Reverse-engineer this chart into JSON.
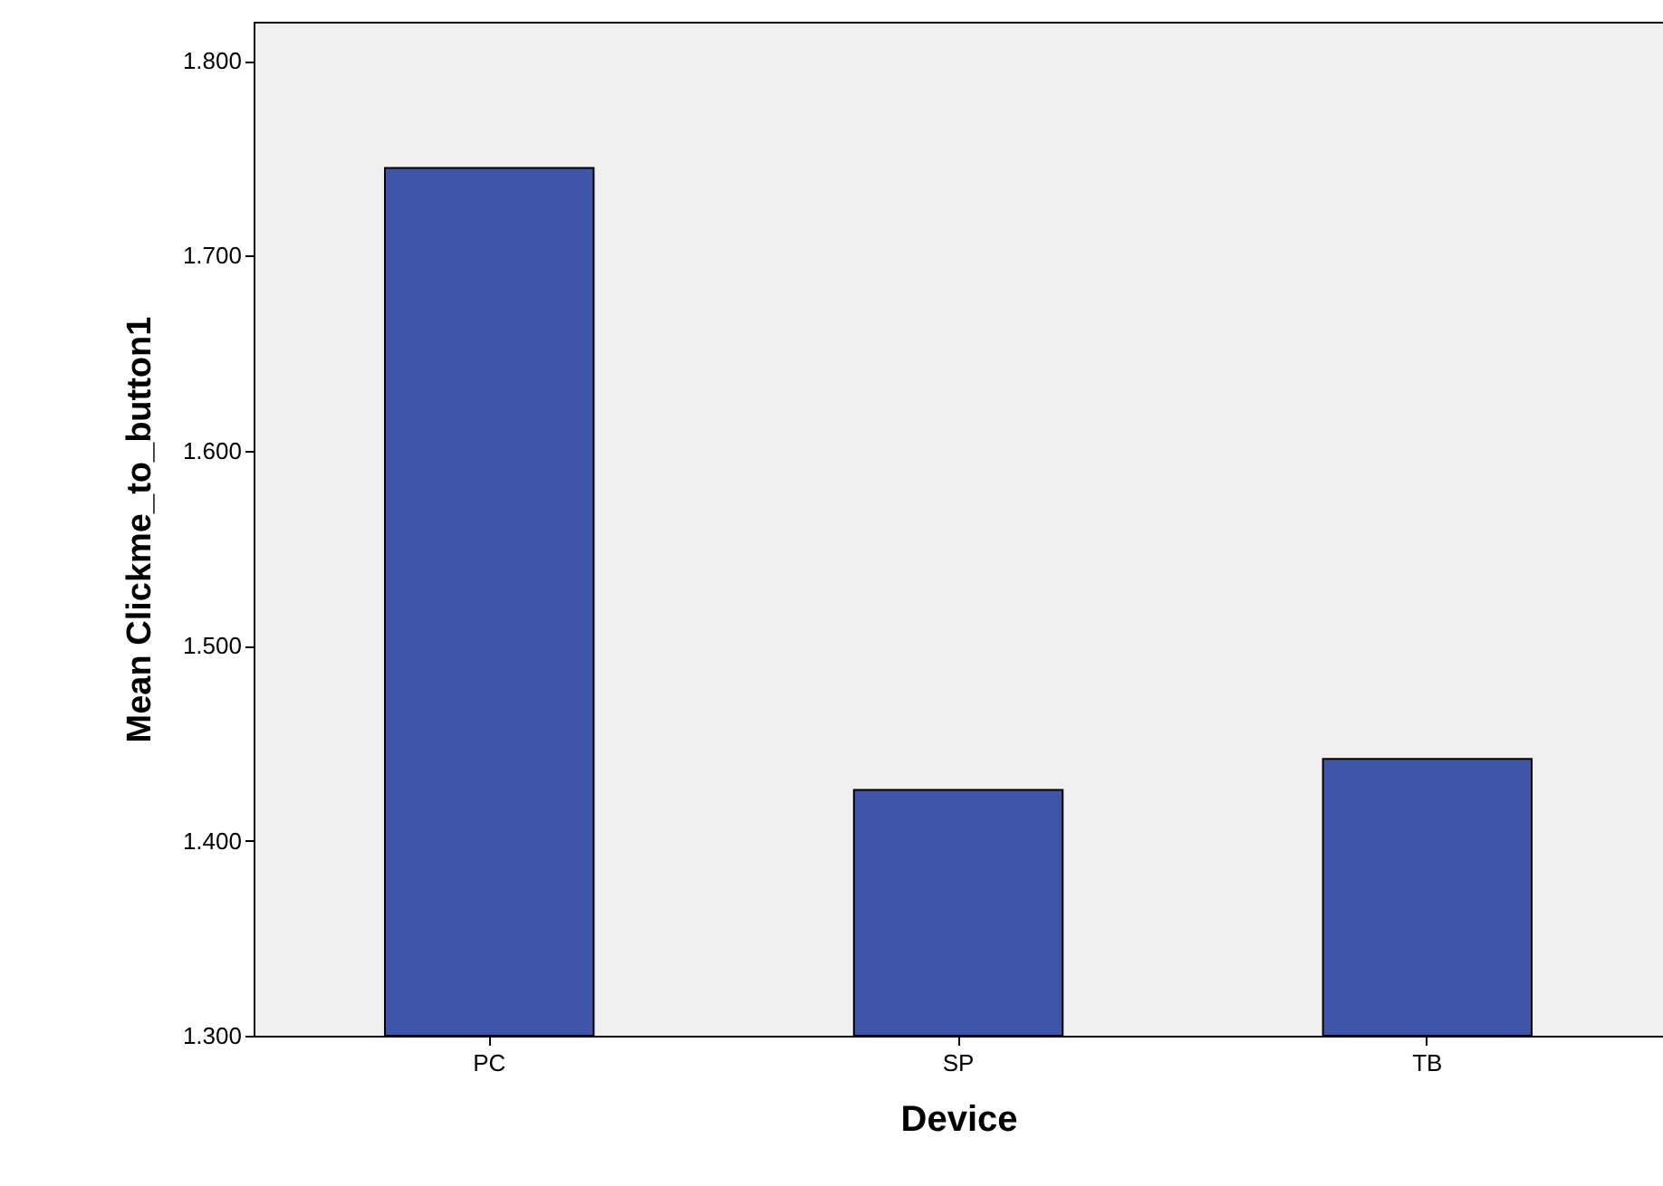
{
  "chart_data": {
    "type": "bar",
    "xlabel": "Device",
    "ylabel": "Mean Clickme_to_button1",
    "categories": [
      "PC",
      "SP",
      "TB"
    ],
    "values": [
      1.745,
      1.426,
      1.442
    ],
    "color": "#3f56a8",
    "ylim": [
      1.3,
      1.82
    ],
    "yticks": [
      {
        "value": 1.3,
        "label": "1.300"
      },
      {
        "value": 1.4,
        "label": "1.400"
      },
      {
        "value": 1.5,
        "label": "1.500"
      },
      {
        "value": 1.6,
        "label": "1.600"
      },
      {
        "value": 1.7,
        "label": "1.700"
      },
      {
        "value": 1.8,
        "label": "1.800"
      }
    ],
    "grid": false
  }
}
